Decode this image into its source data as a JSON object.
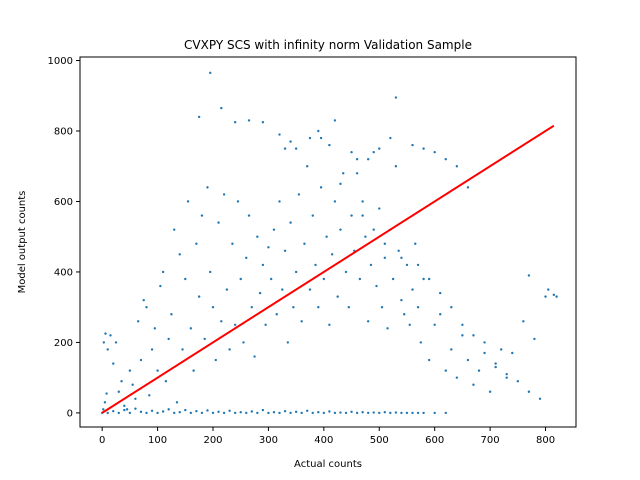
{
  "chart_data": {
    "type": "scatter",
    "title": "CVXPY SCS with infinity norm Validation Sample",
    "xlabel": "Actual counts",
    "ylabel": "Model output counts",
    "xlim": [
      -40,
      855
    ],
    "ylim": [
      -40,
      1010
    ],
    "xticks": [
      0,
      100,
      200,
      300,
      400,
      500,
      600,
      700,
      800
    ],
    "yticks": [
      0,
      200,
      400,
      600,
      800,
      1000
    ],
    "grid": false,
    "legend": "none",
    "series": [
      {
        "kind": "scatter",
        "color": "#1f77b4",
        "points": [
          [
            0,
            0
          ],
          [
            2,
            10
          ],
          [
            5,
            30
          ],
          [
            8,
            55
          ],
          [
            3,
            200
          ],
          [
            6,
            225
          ],
          [
            10,
            180
          ],
          [
            15,
            220
          ],
          [
            20,
            140
          ],
          [
            25,
            200
          ],
          [
            30,
            60
          ],
          [
            35,
            90
          ],
          [
            40,
            20
          ],
          [
            45,
            10
          ],
          [
            50,
            120
          ],
          [
            55,
            80
          ],
          [
            60,
            40
          ],
          [
            65,
            260
          ],
          [
            70,
            150
          ],
          [
            75,
            320
          ],
          [
            80,
            300
          ],
          [
            85,
            50
          ],
          [
            90,
            180
          ],
          [
            95,
            240
          ],
          [
            100,
            120
          ],
          [
            105,
            360
          ],
          [
            110,
            400
          ],
          [
            115,
            90
          ],
          [
            120,
            210
          ],
          [
            125,
            280
          ],
          [
            130,
            520
          ],
          [
            135,
            30
          ],
          [
            140,
            450
          ],
          [
            145,
            180
          ],
          [
            150,
            380
          ],
          [
            155,
            600
          ],
          [
            160,
            240
          ],
          [
            165,
            120
          ],
          [
            170,
            480
          ],
          [
            175,
            330
          ],
          [
            180,
            560
          ],
          [
            185,
            210
          ],
          [
            190,
            640
          ],
          [
            195,
            400
          ],
          [
            200,
            300
          ],
          [
            205,
            150
          ],
          [
            210,
            540
          ],
          [
            215,
            260
          ],
          [
            220,
            620
          ],
          [
            225,
            350
          ],
          [
            230,
            180
          ],
          [
            235,
            480
          ],
          [
            240,
            250
          ],
          [
            245,
            600
          ],
          [
            250,
            380
          ],
          [
            255,
            200
          ],
          [
            260,
            440
          ],
          [
            265,
            560
          ],
          [
            270,
            300
          ],
          [
            275,
            160
          ],
          [
            280,
            500
          ],
          [
            285,
            340
          ],
          [
            290,
            420
          ],
          [
            295,
            250
          ],
          [
            300,
            470
          ],
          [
            305,
            380
          ],
          [
            310,
            520
          ],
          [
            315,
            280
          ],
          [
            320,
            600
          ],
          [
            325,
            350
          ],
          [
            330,
            460
          ],
          [
            335,
            200
          ],
          [
            340,
            540
          ],
          [
            345,
            300
          ],
          [
            350,
            400
          ],
          [
            355,
            620
          ],
          [
            360,
            260
          ],
          [
            365,
            480
          ],
          [
            370,
            700
          ],
          [
            375,
            350
          ],
          [
            380,
            560
          ],
          [
            385,
            420
          ],
          [
            390,
            300
          ],
          [
            395,
            640
          ],
          [
            400,
            380
          ],
          [
            405,
            500
          ],
          [
            410,
            250
          ],
          [
            415,
            450
          ],
          [
            420,
            600
          ],
          [
            425,
            330
          ],
          [
            430,
            520
          ],
          [
            435,
            680
          ],
          [
            440,
            400
          ],
          [
            445,
            300
          ],
          [
            450,
            560
          ],
          [
            455,
            460
          ],
          [
            460,
            720
          ],
          [
            465,
            380
          ],
          [
            470,
            600
          ],
          [
            475,
            500
          ],
          [
            480,
            260
          ],
          [
            485,
            420
          ],
          [
            490,
            740
          ],
          [
            495,
            360
          ],
          [
            500,
            580
          ],
          [
            505,
            300
          ],
          [
            510,
            440
          ],
          [
            515,
            240
          ],
          [
            520,
            520
          ],
          [
            525,
            380
          ],
          [
            530,
            700
          ],
          [
            535,
            460
          ],
          [
            540,
            320
          ],
          [
            545,
            280
          ],
          [
            550,
            420
          ],
          [
            555,
            250
          ],
          [
            560,
            350
          ],
          [
            565,
            480
          ],
          [
            570,
            300
          ],
          [
            575,
            200
          ],
          [
            580,
            380
          ],
          [
            590,
            150
          ],
          [
            600,
            250
          ],
          [
            610,
            280
          ],
          [
            620,
            120
          ],
          [
            630,
            180
          ],
          [
            640,
            100
          ],
          [
            650,
            220
          ],
          [
            660,
            150
          ],
          [
            670,
            80
          ],
          [
            680,
            120
          ],
          [
            690,
            200
          ],
          [
            700,
            60
          ],
          [
            710,
            130
          ],
          [
            720,
            180
          ],
          [
            730,
            100
          ],
          [
            740,
            170
          ],
          [
            760,
            260
          ],
          [
            770,
            390
          ],
          [
            780,
            210
          ],
          [
            800,
            330
          ],
          [
            805,
            350
          ],
          [
            815,
            335
          ],
          [
            820,
            330
          ],
          [
            10,
            0
          ],
          [
            20,
            5
          ],
          [
            30,
            0
          ],
          [
            40,
            8
          ],
          [
            50,
            0
          ],
          [
            60,
            12
          ],
          [
            70,
            3
          ],
          [
            80,
            0
          ],
          [
            90,
            6
          ],
          [
            100,
            0
          ],
          [
            110,
            4
          ],
          [
            120,
            10
          ],
          [
            130,
            0
          ],
          [
            140,
            2
          ],
          [
            150,
            8
          ],
          [
            160,
            0
          ],
          [
            170,
            5
          ],
          [
            180,
            0
          ],
          [
            190,
            7
          ],
          [
            200,
            0
          ],
          [
            210,
            3
          ],
          [
            220,
            0
          ],
          [
            230,
            6
          ],
          [
            240,
            0
          ],
          [
            250,
            2
          ],
          [
            260,
            0
          ],
          [
            270,
            4
          ],
          [
            280,
            0
          ],
          [
            290,
            8
          ],
          [
            300,
            0
          ],
          [
            310,
            2
          ],
          [
            320,
            0
          ],
          [
            330,
            5
          ],
          [
            340,
            0
          ],
          [
            350,
            3
          ],
          [
            360,
            0
          ],
          [
            370,
            6
          ],
          [
            380,
            0
          ],
          [
            390,
            2
          ],
          [
            400,
            0
          ],
          [
            410,
            4
          ],
          [
            420,
            0
          ],
          [
            430,
            1
          ],
          [
            440,
            0
          ],
          [
            450,
            3
          ],
          [
            460,
            0
          ],
          [
            470,
            2
          ],
          [
            480,
            0
          ],
          [
            490,
            1
          ],
          [
            500,
            0
          ],
          [
            510,
            2
          ],
          [
            520,
            0
          ],
          [
            530,
            1
          ],
          [
            540,
            0
          ],
          [
            550,
            0
          ],
          [
            560,
            0
          ],
          [
            570,
            0
          ],
          [
            580,
            0
          ],
          [
            600,
            0
          ],
          [
            620,
            0
          ],
          [
            195,
            965
          ],
          [
            175,
            840
          ],
          [
            215,
            865
          ],
          [
            240,
            825
          ],
          [
            265,
            830
          ],
          [
            290,
            825
          ],
          [
            530,
            895
          ],
          [
            320,
            790
          ],
          [
            330,
            750
          ],
          [
            340,
            770
          ],
          [
            350,
            750
          ],
          [
            390,
            800
          ],
          [
            375,
            780
          ],
          [
            395,
            780
          ],
          [
            410,
            760
          ],
          [
            420,
            830
          ],
          [
            450,
            740
          ],
          [
            480,
            720
          ],
          [
            500,
            750
          ],
          [
            520,
            780
          ],
          [
            560,
            760
          ],
          [
            580,
            750
          ],
          [
            600,
            740
          ],
          [
            620,
            720
          ],
          [
            640,
            700
          ],
          [
            660,
            640
          ],
          [
            460,
            680
          ],
          [
            430,
            650
          ],
          [
            470,
            560
          ],
          [
            490,
            520
          ],
          [
            510,
            480
          ],
          [
            540,
            440
          ],
          [
            570,
            420
          ],
          [
            590,
            380
          ],
          [
            610,
            340
          ],
          [
            630,
            300
          ],
          [
            650,
            250
          ],
          [
            670,
            220
          ],
          [
            690,
            170
          ],
          [
            710,
            140
          ],
          [
            730,
            110
          ],
          [
            750,
            90
          ],
          [
            770,
            60
          ],
          [
            790,
            40
          ]
        ]
      },
      {
        "kind": "line",
        "color": "#ff0000",
        "points": [
          [
            0,
            0
          ],
          [
            815,
            815
          ]
        ]
      }
    ]
  }
}
